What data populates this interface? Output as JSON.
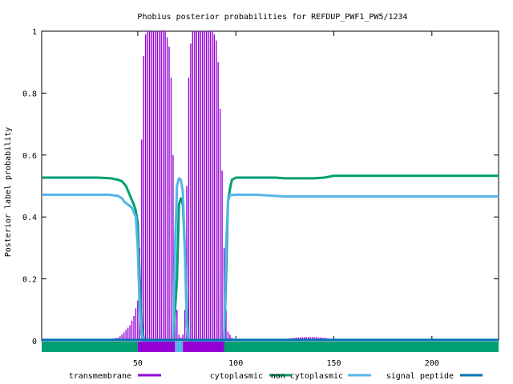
{
  "chart_data": {
    "type": "line",
    "title": "Phobius posterior probabilities for REFDUP_PWF1_PW5/1234",
    "xlabel": "",
    "ylabel": "Posterior label probability",
    "xlim": [
      1,
      234
    ],
    "ylim": [
      0,
      1
    ],
    "x_ticks": [
      50,
      100,
      150,
      200
    ],
    "y_ticks": [
      0,
      0.2,
      0.4,
      0.6,
      0.8,
      1
    ],
    "y_tick_labels": [
      "0",
      "0.2",
      "0.4",
      "0.6",
      "0.8",
      "1"
    ],
    "legend_position": "bottom",
    "grid": false,
    "series": [
      {
        "name": "transmembrane",
        "style": "impulses",
        "color": "#9400d3",
        "points": [
          [
            1,
            0
          ],
          [
            20,
            0
          ],
          [
            25,
            0.002
          ],
          [
            30,
            0.004
          ],
          [
            35,
            0.005
          ],
          [
            40,
            0.01
          ],
          [
            42,
            0.02
          ],
          [
            44,
            0.035
          ],
          [
            46,
            0.05
          ],
          [
            48,
            0.08
          ],
          [
            50,
            0.13
          ],
          [
            51,
            0.3
          ],
          [
            52,
            0.65
          ],
          [
            53,
            0.92
          ],
          [
            54,
            0.99
          ],
          [
            55,
            1
          ],
          [
            56,
            1
          ],
          [
            57,
            1
          ],
          [
            58,
            1
          ],
          [
            59,
            1
          ],
          [
            60,
            1
          ],
          [
            61,
            1
          ],
          [
            62,
            1
          ],
          [
            63,
            1
          ],
          [
            64,
            1
          ],
          [
            65,
            0.98
          ],
          [
            66,
            0.95
          ],
          [
            67,
            0.85
          ],
          [
            68,
            0.6
          ],
          [
            69,
            0.3
          ],
          [
            70,
            0.1
          ],
          [
            71,
            0.02
          ],
          [
            72,
            0.01
          ],
          [
            73,
            0.02
          ],
          [
            74,
            0.1
          ],
          [
            75,
            0.5
          ],
          [
            76,
            0.85
          ],
          [
            77,
            0.96
          ],
          [
            78,
            1
          ],
          [
            79,
            1
          ],
          [
            80,
            1
          ],
          [
            81,
            1
          ],
          [
            82,
            1
          ],
          [
            83,
            1
          ],
          [
            84,
            1
          ],
          [
            85,
            1
          ],
          [
            86,
            1
          ],
          [
            87,
            1
          ],
          [
            88,
            1
          ],
          [
            89,
            0.99
          ],
          [
            90,
            0.97
          ],
          [
            91,
            0.9
          ],
          [
            92,
            0.75
          ],
          [
            93,
            0.55
          ],
          [
            94,
            0.3
          ],
          [
            95,
            0.1
          ],
          [
            96,
            0.03
          ],
          [
            98,
            0.01
          ],
          [
            100,
            0
          ],
          [
            120,
            0
          ],
          [
            125,
            0.005
          ],
          [
            130,
            0.01
          ],
          [
            135,
            0.012
          ],
          [
            140,
            0.012
          ],
          [
            145,
            0.01
          ],
          [
            150,
            0.003
          ],
          [
            155,
            0
          ],
          [
            234,
            0
          ]
        ]
      },
      {
        "name": "cytoplasmic",
        "style": "line",
        "color": "#009e73",
        "points": [
          [
            1,
            0.527
          ],
          [
            10,
            0.527
          ],
          [
            20,
            0.527
          ],
          [
            30,
            0.527
          ],
          [
            36,
            0.525
          ],
          [
            40,
            0.52
          ],
          [
            42,
            0.515
          ],
          [
            44,
            0.5
          ],
          [
            46,
            0.47
          ],
          [
            48,
            0.44
          ],
          [
            49,
            0.42
          ],
          [
            50,
            0.38
          ],
          [
            51,
            0.2
          ],
          [
            52,
            0.05
          ],
          [
            53,
            0.01
          ],
          [
            54,
            0
          ],
          [
            68,
            0
          ],
          [
            70,
            0.2
          ],
          [
            71,
            0.44
          ],
          [
            72,
            0.46
          ],
          [
            73,
            0.44
          ],
          [
            74,
            0.3
          ],
          [
            75,
            0.1
          ],
          [
            76,
            0
          ],
          [
            94,
            0
          ],
          [
            95,
            0.2
          ],
          [
            96,
            0.45
          ],
          [
            97,
            0.49
          ],
          [
            98,
            0.52
          ],
          [
            100,
            0.527
          ],
          [
            110,
            0.527
          ],
          [
            120,
            0.527
          ],
          [
            125,
            0.525
          ],
          [
            130,
            0.525
          ],
          [
            140,
            0.525
          ],
          [
            145,
            0.527
          ],
          [
            150,
            0.533
          ],
          [
            160,
            0.533
          ],
          [
            180,
            0.533
          ],
          [
            200,
            0.533
          ],
          [
            220,
            0.533
          ],
          [
            234,
            0.533
          ]
        ]
      },
      {
        "name": "non cytoplasmic",
        "style": "line",
        "color": "#56b4e9",
        "points": [
          [
            1,
            0.472
          ],
          [
            20,
            0.472
          ],
          [
            35,
            0.472
          ],
          [
            40,
            0.468
          ],
          [
            42,
            0.46
          ],
          [
            43,
            0.45
          ],
          [
            45,
            0.44
          ],
          [
            47,
            0.43
          ],
          [
            49,
            0.4
          ],
          [
            50,
            0.3
          ],
          [
            51,
            0.1
          ],
          [
            52,
            0.02
          ],
          [
            53,
            0
          ],
          [
            68,
            0
          ],
          [
            69,
            0.3
          ],
          [
            70,
            0.5
          ],
          [
            71,
            0.525
          ],
          [
            72,
            0.52
          ],
          [
            73,
            0.48
          ],
          [
            74,
            0.3
          ],
          [
            75,
            0.05
          ],
          [
            76,
            0
          ],
          [
            94,
            0
          ],
          [
            95,
            0.3
          ],
          [
            96,
            0.45
          ],
          [
            97,
            0.47
          ],
          [
            100,
            0.472
          ],
          [
            110,
            0.472
          ],
          [
            115,
            0.47
          ],
          [
            120,
            0.468
          ],
          [
            125,
            0.466
          ],
          [
            150,
            0.466
          ],
          [
            200,
            0.466
          ],
          [
            234,
            0.466
          ]
        ]
      },
      {
        "name": "signal peptide",
        "style": "line",
        "color": "#0072b2",
        "points": [
          [
            1,
            0.003
          ],
          [
            234,
            0.003
          ]
        ]
      }
    ],
    "topology_bar": [
      {
        "from": 1,
        "to": 50,
        "color": "#009e73"
      },
      {
        "from": 50,
        "to": 69,
        "color": "#9400d3"
      },
      {
        "from": 69,
        "to": 73,
        "color": "#56b4e9"
      },
      {
        "from": 73,
        "to": 94,
        "color": "#9400d3"
      },
      {
        "from": 94,
        "to": 234,
        "color": "#009e73"
      }
    ]
  }
}
